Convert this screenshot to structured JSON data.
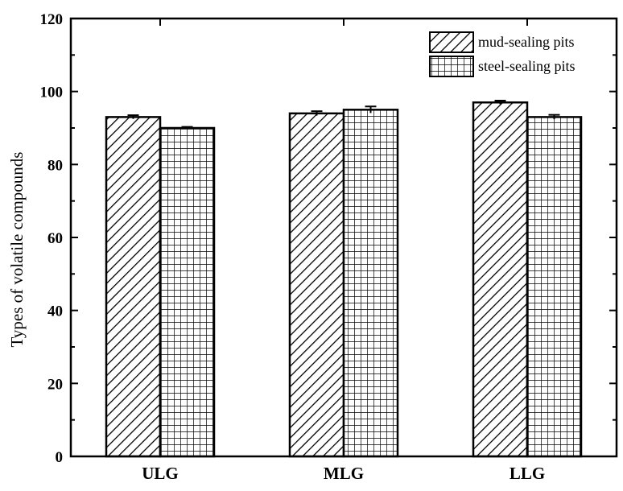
{
  "chart_data": {
    "type": "bar",
    "title": "",
    "xlabel": "",
    "ylabel": "Types of volatile compounds",
    "categories": [
      "ULG",
      "MLG",
      "LLG"
    ],
    "series": [
      {
        "name": "mud-sealing pits",
        "pattern": "diagonal-hatch",
        "values": [
          93,
          94,
          97
        ],
        "errors": [
          0.5,
          0.6,
          0.5
        ]
      },
      {
        "name": "steel-sealing pits",
        "pattern": "grid",
        "values": [
          90,
          95,
          93
        ],
        "errors": [
          0.3,
          0.9,
          0.6
        ]
      }
    ],
    "ylim": [
      0,
      120
    ],
    "yticks": [
      0,
      20,
      40,
      60,
      80,
      100,
      120
    ],
    "grid": false,
    "legend_position": "top-right",
    "colors": {
      "stroke": "#000000",
      "fill": "#ffffff"
    }
  }
}
